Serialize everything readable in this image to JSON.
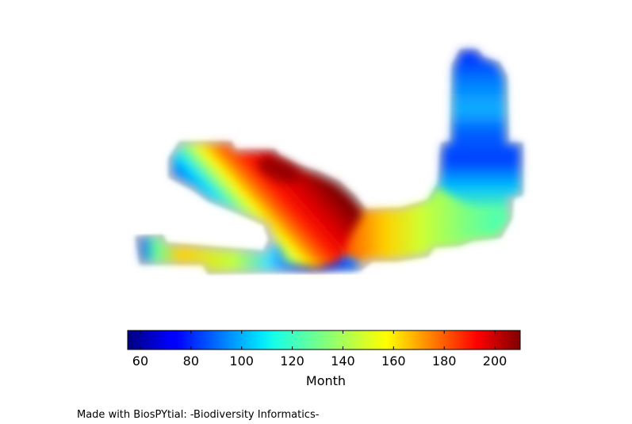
{
  "colorbar": {
    "label": "Month",
    "min": 55,
    "max": 210,
    "ticks": [
      "60",
      "80",
      "100",
      "120",
      "140",
      "160",
      "180",
      "200"
    ],
    "colormap": "jet"
  },
  "footer": {
    "credit": "Made with BiosPYtial: -Biodiversity Informatics-"
  },
  "colors": {
    "jet_low": "#00007f",
    "jet_mid": "#7fff7f",
    "jet_high": "#7f0000"
  }
}
